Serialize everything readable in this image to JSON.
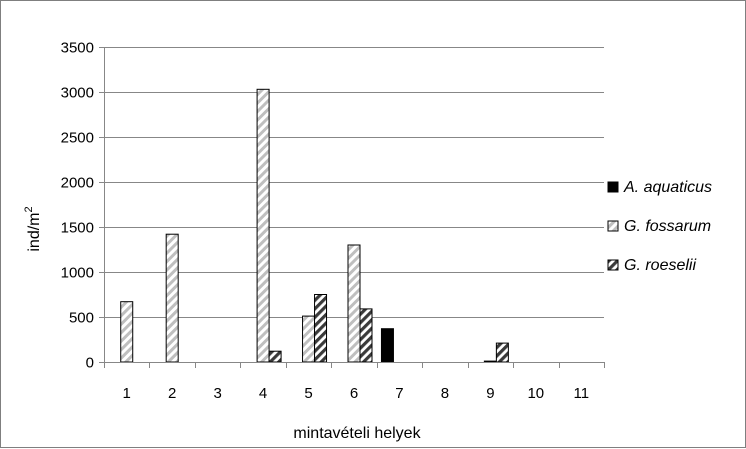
{
  "chart_data": {
    "type": "bar",
    "xlabel": "mintavételi helyek",
    "ylabel": "ind/m",
    "ylabel_sup": "2",
    "ylim": [
      0,
      3500
    ],
    "yticks": [
      0,
      500,
      1000,
      1500,
      2000,
      2500,
      3000,
      3500
    ],
    "ytick_labels": [
      "0",
      "500",
      "1000",
      "1500",
      "2000",
      "2500",
      "3000",
      "3500"
    ],
    "categories": [
      "1",
      "2",
      "3",
      "4",
      "5",
      "6",
      "7",
      "8",
      "9",
      "10",
      "11"
    ],
    "grid": "horizontal",
    "legend_position": "right",
    "series": [
      {
        "name": "A. aquaticus",
        "values": [
          0,
          0,
          0,
          0,
          0,
          0,
          370,
          0,
          0,
          0,
          0
        ],
        "color": "#000000",
        "pattern": "solid"
      },
      {
        "name": "G. fossarum",
        "values": [
          670,
          1420,
          0,
          3030,
          510,
          1300,
          0,
          0,
          10,
          0,
          0
        ],
        "color": "#7f7f7f",
        "pattern": "light-diagonal"
      },
      {
        "name": "G. roeselii",
        "values": [
          0,
          0,
          0,
          120,
          750,
          590,
          0,
          0,
          210,
          0,
          0
        ],
        "color": "#3f3f3f",
        "pattern": "dark-diagonal"
      }
    ]
  }
}
